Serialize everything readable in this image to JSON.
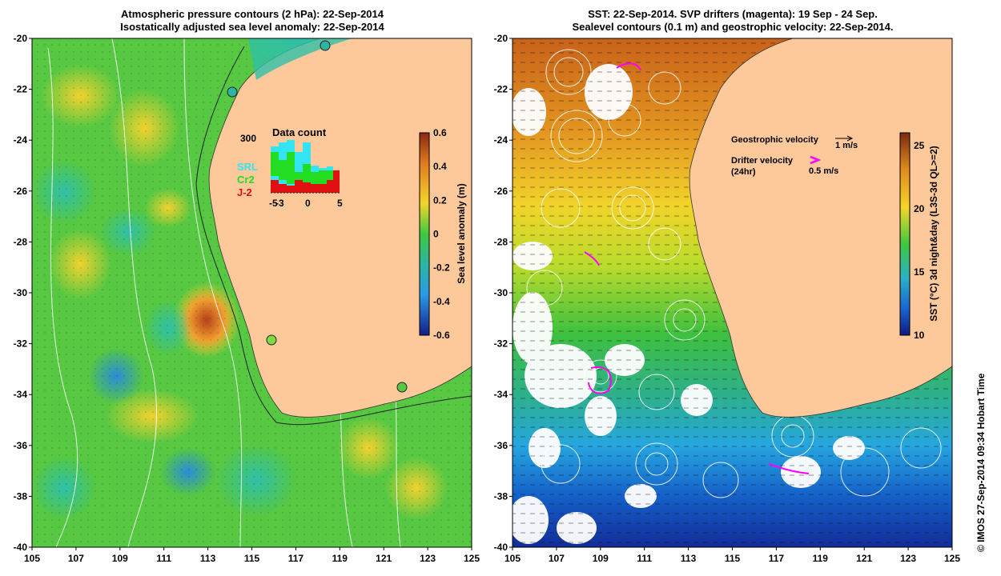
{
  "left_panel": {
    "title_line1": "Atmospheric pressure contours (2 hPa): 22-Sep-2014",
    "title_line2": "Isostatically adjusted sea level anomaly: 22-Sep-2014",
    "x_ticks": [
      "105",
      "107",
      "109",
      "111",
      "113",
      "115",
      "117",
      "119",
      "121",
      "123",
      "125"
    ],
    "y_ticks": [
      "-20",
      "-22",
      "-24",
      "-26",
      "-28",
      "-30",
      "-32",
      "-34",
      "-36",
      "-38",
      "-40"
    ],
    "colorbar": {
      "label": "Sea level anomaly (m)",
      "ticks": [
        "0.6",
        "0.4",
        "0.2",
        "0",
        "-0.2",
        "-0.4",
        "-0.6"
      ],
      "range": [
        -0.6,
        0.6
      ]
    },
    "inset": {
      "title": "Data count",
      "y_tick": "300",
      "x_ticks": [
        "-5",
        "0",
        "5"
      ],
      "x_neg_fragment": "-3",
      "legend": [
        {
          "label": "SRL",
          "color": "#33e5f2"
        },
        {
          "label": "Cr2",
          "color": "#22dd22"
        },
        {
          "label": "J-2",
          "color": "#e01010"
        }
      ]
    }
  },
  "right_panel": {
    "title_line1": "SST: 22-Sep-2014. SVP drifters (magenta): 19 Sep - 24 Sep.",
    "title_line2": "Sealevel contours (0.1 m) and geostrophic velocity: 22-Sep-2014.",
    "x_ticks": [
      "105",
      "107",
      "109",
      "111",
      "113",
      "115",
      "117",
      "119",
      "121",
      "123",
      "125"
    ],
    "y_ticks": [
      "-20",
      "-22",
      "-24",
      "-26",
      "-28",
      "-30",
      "-32",
      "-34",
      "-36",
      "-38",
      "-40"
    ],
    "colorbar": {
      "label": "SST (°C) 3d night&day (L3S-3d QL>=2)",
      "ticks": [
        "25",
        "20",
        "15",
        "10"
      ],
      "range": [
        10,
        26
      ]
    },
    "legend": {
      "geo_label": "Geostrophic velocity",
      "geo_scale": "1 m/s",
      "drifter_label": "Drifter velocity",
      "drifter_sub": "(24hr)",
      "drifter_scale": "0.5 m/s",
      "drifter_color": "#ff00ff"
    }
  },
  "colors": {
    "land": "#fdc99a",
    "drifter": "#ff00ff"
  },
  "copyright": "© IMOS 27-Sep-2014 09:34 Hobart Time"
}
